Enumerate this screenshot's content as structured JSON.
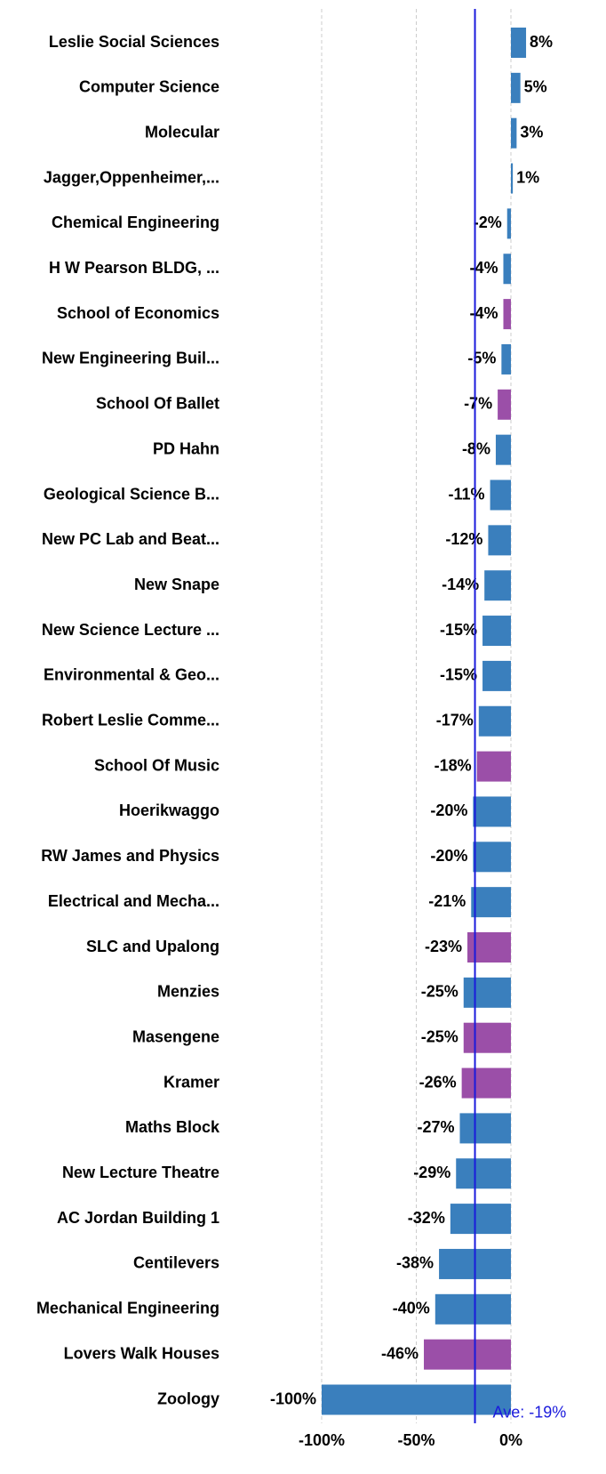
{
  "chart_data": {
    "type": "bar",
    "orientation": "horizontal",
    "categories": [
      "Leslie Social Sciences",
      "Computer Science",
      "Molecular",
      "Jagger,Oppenheimer,...",
      "Chemical Engineering",
      "H W Pearson BLDG, ...",
      "School of Economics",
      "New Engineering Buil...",
      "School Of Ballet",
      "PD Hahn",
      "Geological Science B...",
      "New PC Lab and Beat...",
      "New Snape",
      "New Science Lecture ...",
      "Environmental & Geo...",
      "Robert Leslie Comme...",
      "School Of Music",
      "Hoerikwaggo",
      "RW James and Physics",
      "Electrical and Mecha...",
      "SLC and Upalong",
      "Menzies",
      "Masengene",
      "Kramer",
      "Maths Block",
      "New Lecture Theatre",
      "AC Jordan Building 1",
      "Centilevers",
      "Mechanical Engineering",
      "Lovers Walk Houses",
      "Zoology"
    ],
    "values": [
      8,
      5,
      3,
      1,
      -2,
      -4,
      -4,
      -5,
      -7,
      -8,
      -11,
      -12,
      -14,
      -15,
      -15,
      -17,
      -18,
      -20,
      -20,
      -21,
      -23,
      -25,
      -25,
      -26,
      -27,
      -29,
      -32,
      -38,
      -40,
      -46,
      -100
    ],
    "value_labels": [
      "8%",
      "5%",
      "3%",
      "1%",
      "-2%",
      "-4%",
      "-4%",
      "-5%",
      "-7%",
      "-8%",
      "-11%",
      "-12%",
      "-14%",
      "-15%",
      "-15%",
      "-17%",
      "-18%",
      "-20%",
      "-20%",
      "-21%",
      "-23%",
      "-25%",
      "-25%",
      "-26%",
      "-27%",
      "-29%",
      "-32%",
      "-38%",
      "-40%",
      "-46%",
      "-100%"
    ],
    "colors": [
      "#3a7fbd",
      "#3a7fbd",
      "#3a7fbd",
      "#3a7fbd",
      "#3a7fbd",
      "#3a7fbd",
      "#9b4fa8",
      "#3a7fbd",
      "#9b4fa8",
      "#3a7fbd",
      "#3a7fbd",
      "#3a7fbd",
      "#3a7fbd",
      "#3a7fbd",
      "#3a7fbd",
      "#3a7fbd",
      "#9b4fa8",
      "#3a7fbd",
      "#3a7fbd",
      "#3a7fbd",
      "#9b4fa8",
      "#3a7fbd",
      "#9b4fa8",
      "#9b4fa8",
      "#3a7fbd",
      "#3a7fbd",
      "#3a7fbd",
      "#3a7fbd",
      "#3a7fbd",
      "#9b4fa8",
      "#3a7fbd"
    ],
    "xlim": [
      -100,
      10
    ],
    "xticks": [
      {
        "value": -100,
        "label": "-100%"
      },
      {
        "value": -50,
        "label": "-50%"
      },
      {
        "value": 0,
        "label": "0%"
      }
    ],
    "grid": true,
    "average": {
      "value": -19,
      "label": "Ave: -19%",
      "color": "#1a1adc"
    }
  }
}
